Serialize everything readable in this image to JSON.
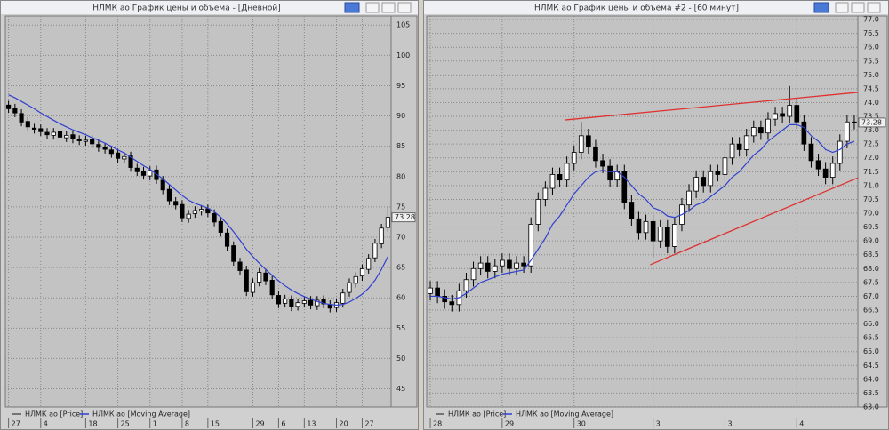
{
  "windows": [
    {
      "title": "НЛМК ао График цены и объема - [Дневной]",
      "chart": {
        "type": "candlestick",
        "ylim": [
          42.0,
          106.5
        ],
        "yticks": [
          45,
          50,
          55,
          60,
          65,
          70,
          75,
          80,
          85,
          90,
          95,
          100,
          105
        ],
        "grid": true,
        "background": "#c3c3c3",
        "xticks": [
          {
            "value": 0,
            "label": "27"
          },
          {
            "value": 5,
            "label": "4"
          },
          {
            "value": 12,
            "label": "18"
          },
          {
            "value": 17,
            "label": "25"
          },
          {
            "value": 22,
            "label": "1"
          },
          {
            "value": 27,
            "label": "8"
          },
          {
            "value": 31,
            "label": "15"
          },
          {
            "value": 38,
            "label": "29"
          },
          {
            "value": 42,
            "label": "6"
          },
          {
            "value": 46,
            "label": "13"
          },
          {
            "value": 51,
            "label": "20"
          },
          {
            "value": 55,
            "label": "27"
          }
        ],
        "price": {
          "name": "НЛМК ао [Price]",
          "color": "#000000",
          "up_color": "#ffffff",
          "down_color": "#000000",
          "open": [
            91.8,
            91.3,
            90.4,
            89.1,
            88.0,
            87.9,
            87.3,
            86.8,
            87.4,
            86.4,
            86.9,
            86.1,
            85.8,
            86.1,
            85.3,
            84.9,
            84.4,
            83.9,
            82.9,
            83.4,
            81.4,
            80.9,
            80.1,
            81.1,
            79.4,
            77.9,
            75.9,
            75.4,
            73.1,
            73.9,
            74.3,
            74.7,
            73.9,
            72.6,
            70.7,
            68.6,
            65.9,
            64.6,
            60.9,
            62.6,
            64.1,
            62.9,
            60.4,
            59.1,
            59.7,
            58.6,
            59.1,
            59.6,
            58.7,
            59.7,
            58.9,
            58.4,
            59.1,
            60.9,
            62.4,
            63.6,
            64.7,
            66.6,
            68.9,
            71.6
          ],
          "high": [
            92.5,
            92.0,
            91.1,
            89.8,
            88.7,
            88.6,
            88.0,
            88.0,
            88.1,
            87.5,
            87.6,
            86.8,
            86.7,
            86.8,
            86.0,
            85.6,
            85.1,
            84.6,
            84.0,
            84.1,
            82.1,
            81.6,
            81.7,
            81.8,
            80.1,
            78.6,
            76.6,
            76.1,
            74.5,
            75.1,
            75.3,
            75.4,
            74.6,
            73.3,
            71.4,
            69.3,
            66.6,
            65.3,
            63.2,
            64.9,
            64.8,
            63.6,
            61.1,
            60.5,
            60.4,
            59.9,
            60.2,
            60.3,
            60.3,
            60.4,
            59.6,
            59.9,
            61.5,
            63.2,
            64.2,
            65.5,
            67.2,
            69.7,
            72.2,
            75.0
          ],
          "low": [
            90.5,
            89.8,
            88.3,
            87.5,
            87.1,
            86.7,
            86.2,
            86.1,
            85.8,
            85.7,
            85.5,
            85.2,
            85.1,
            84.7,
            84.1,
            83.8,
            83.1,
            82.3,
            82.2,
            80.8,
            80.1,
            79.5,
            79.4,
            78.8,
            77.1,
            75.3,
            74.6,
            72.5,
            72.4,
            73.2,
            73.6,
            73.3,
            71.8,
            70.1,
            67.8,
            65.3,
            63.8,
            60.3,
            60.2,
            61.9,
            62.1,
            59.8,
            58.3,
            58.4,
            57.8,
            57.9,
            58.4,
            58.1,
            58.0,
            58.3,
            57.6,
            57.7,
            58.4,
            60.2,
            61.7,
            62.8,
            64.0,
            65.9,
            68.2,
            70.9
          ],
          "close": [
            91.2,
            90.5,
            89.0,
            88.2,
            87.8,
            87.4,
            86.9,
            87.3,
            86.5,
            86.8,
            86.2,
            85.9,
            86.0,
            85.4,
            84.8,
            84.5,
            83.8,
            83.0,
            83.3,
            81.5,
            80.8,
            80.2,
            81.0,
            79.5,
            77.8,
            76.0,
            75.3,
            73.2,
            73.8,
            74.4,
            74.6,
            74.0,
            72.5,
            70.8,
            68.5,
            66.0,
            64.5,
            61.0,
            62.5,
            64.2,
            62.8,
            60.5,
            59.0,
            59.8,
            58.5,
            59.2,
            59.5,
            58.8,
            59.6,
            59.0,
            58.3,
            59.2,
            60.8,
            62.5,
            63.5,
            64.8,
            66.5,
            69.0,
            71.5,
            73.28
          ]
        },
        "ma": {
          "name": "НЛМК ао [Moving Average]",
          "color": "#3040d0",
          "values": [
            93.5,
            93.0,
            92.4,
            91.8,
            91.2,
            90.5,
            89.9,
            89.3,
            88.7,
            88.2,
            87.7,
            87.3,
            86.9,
            86.4,
            86.0,
            85.5,
            85.0,
            84.4,
            83.9,
            83.2,
            82.5,
            81.8,
            81.2,
            80.4,
            79.6,
            78.7,
            77.8,
            76.9,
            76.1,
            75.6,
            75.2,
            74.8,
            74.2,
            73.3,
            72.2,
            70.9,
            69.5,
            68.0,
            66.8,
            65.7,
            64.7,
            63.7,
            62.8,
            62.0,
            61.3,
            60.7,
            60.2,
            59.8,
            59.4,
            59.1,
            58.9,
            58.8,
            58.9,
            59.3,
            59.9,
            60.6,
            61.6,
            62.9,
            64.7,
            66.8
          ]
        },
        "last_price": 73.28
      }
    },
    {
      "title": "НЛМК ао График цены и объема #2 - [60 минут]",
      "chart": {
        "type": "candlestick",
        "ylim": [
          63.0,
          77.13
        ],
        "grid": true,
        "background": "#c3c3c3",
        "yticks": [
          {
            "value": 63,
            "label": "63.0"
          },
          63.5,
          {
            "value": 64,
            "label": "64.0"
          },
          64.5,
          {
            "value": 65,
            "label": "65.0"
          },
          65.5,
          {
            "value": 66,
            "label": "66.0"
          },
          66.5,
          {
            "value": 67,
            "label": "67.0"
          },
          67.5,
          {
            "value": 68,
            "label": "68.0"
          },
          68.5,
          {
            "value": 69,
            "label": "69.0"
          },
          69.5,
          {
            "value": 70,
            "label": "70.0"
          },
          70.5,
          {
            "value": 71,
            "label": "71.0"
          },
          71.5,
          {
            "value": 72,
            "label": "72.0"
          },
          72.5,
          {
            "value": 73,
            "label": "73.0"
          },
          73.5,
          {
            "value": 74,
            "label": "74.0"
          },
          74.5,
          {
            "value": 75,
            "label": "75.0"
          },
          75.5,
          {
            "value": 76,
            "label": "76.0"
          },
          76.5,
          {
            "value": 77,
            "label": "77.0"
          }
        ],
        "xticks": [
          {
            "value": 0,
            "label": "28"
          },
          {
            "value": 10,
            "label": "29"
          },
          {
            "value": 20,
            "label": "30"
          },
          {
            "value": 31,
            "label": "3"
          },
          {
            "value": 41,
            "label": "3"
          },
          {
            "value": 51,
            "label": "4"
          }
        ],
        "price": {
          "name": "НЛМК ао [Price]",
          "color": "#000000",
          "up_color": "#ffffff",
          "down_color": "#000000",
          "open": [
            67.1,
            67.3,
            67.0,
            66.8,
            66.7,
            67.2,
            67.6,
            68.0,
            68.2,
            67.9,
            68.1,
            68.3,
            68.0,
            68.2,
            68.1,
            69.6,
            70.5,
            70.9,
            71.4,
            71.2,
            71.8,
            72.2,
            72.8,
            72.4,
            71.9,
            71.7,
            71.2,
            71.5,
            70.4,
            69.8,
            69.3,
            69.7,
            69.0,
            69.5,
            68.8,
            69.6,
            70.3,
            70.8,
            71.3,
            71.0,
            71.5,
            71.4,
            72.0,
            72.5,
            72.3,
            72.8,
            73.1,
            72.9,
            73.4,
            73.6,
            73.5,
            73.9,
            73.3,
            72.5,
            71.9,
            71.6,
            71.3,
            71.8,
            72.6,
            73.3
          ],
          "high": [
            67.55,
            67.55,
            67.25,
            67.05,
            67.45,
            67.85,
            68.25,
            68.45,
            68.45,
            68.35,
            68.55,
            68.55,
            68.45,
            68.45,
            69.85,
            70.75,
            71.15,
            71.65,
            71.65,
            72.05,
            72.45,
            73.3,
            73.05,
            72.65,
            72.15,
            71.95,
            71.75,
            71.75,
            70.65,
            70.05,
            69.95,
            69.95,
            69.75,
            69.75,
            69.85,
            70.55,
            71.05,
            71.55,
            71.55,
            71.75,
            71.75,
            72.25,
            72.75,
            72.75,
            73.05,
            73.35,
            73.35,
            73.65,
            73.85,
            73.85,
            74.6,
            74.15,
            73.55,
            72.75,
            72.15,
            71.85,
            72.05,
            72.85,
            73.55,
            73.55
          ],
          "low": [
            66.85,
            66.75,
            66.55,
            66.45,
            66.45,
            66.95,
            67.35,
            67.75,
            67.65,
            67.65,
            67.85,
            67.75,
            67.75,
            67.85,
            67.85,
            69.35,
            70.25,
            70.65,
            70.95,
            70.95,
            71.55,
            71.95,
            72.15,
            71.65,
            71.45,
            70.95,
            70.95,
            70.15,
            69.55,
            69.05,
            69.05,
            68.4,
            68.75,
            68.55,
            68.55,
            69.35,
            70.05,
            70.55,
            70.75,
            70.75,
            71.15,
            71.15,
            71.75,
            72.05,
            72.05,
            72.55,
            72.65,
            72.65,
            73.15,
            73.25,
            73.25,
            73.05,
            72.25,
            71.65,
            71.35,
            71.05,
            71.05,
            71.55,
            72.35,
            73.03
          ],
          "close": [
            67.3,
            67.0,
            66.8,
            66.7,
            67.2,
            67.6,
            68.0,
            68.2,
            67.9,
            68.1,
            68.3,
            68.0,
            68.2,
            68.1,
            69.6,
            70.5,
            70.9,
            71.4,
            71.2,
            71.8,
            72.2,
            72.8,
            72.4,
            71.9,
            71.7,
            71.2,
            71.5,
            70.4,
            69.8,
            69.3,
            69.7,
            69.0,
            69.5,
            68.8,
            69.6,
            70.3,
            70.8,
            71.3,
            71.0,
            71.5,
            71.4,
            72.0,
            72.5,
            72.3,
            72.8,
            73.1,
            72.9,
            73.4,
            73.6,
            73.5,
            73.9,
            73.3,
            72.5,
            71.9,
            71.6,
            71.3,
            71.8,
            72.6,
            73.3,
            73.28
          ]
        },
        "ma": {
          "name": "НЛМК ао [Moving Average]",
          "color": "#3040d0",
          "values": [
            67.0,
            67.0,
            66.95,
            66.9,
            66.95,
            67.1,
            67.3,
            67.5,
            67.6,
            67.7,
            67.8,
            67.85,
            67.9,
            67.95,
            68.3,
            68.7,
            69.1,
            69.6,
            69.9,
            70.3,
            70.7,
            71.0,
            71.3,
            71.5,
            71.55,
            71.5,
            71.5,
            71.3,
            71.0,
            70.7,
            70.5,
            70.2,
            70.1,
            69.9,
            69.85,
            69.95,
            70.1,
            70.3,
            70.4,
            70.6,
            70.8,
            71.0,
            71.3,
            71.5,
            71.8,
            72.1,
            72.3,
            72.6,
            72.8,
            73.0,
            73.2,
            73.2,
            73.1,
            72.8,
            72.6,
            72.3,
            72.2,
            72.3,
            72.5,
            72.6
          ]
        },
        "trendlines": [
          {
            "color": "#e03030",
            "x": [
              18.7,
              59.5
            ],
            "y": [
              73.37,
              74.37
            ]
          },
          {
            "color": "#e03030",
            "x": [
              30.6,
              59.5
            ],
            "y": [
              68.14,
              71.28
            ]
          }
        ],
        "last_price": 73.28
      }
    }
  ]
}
